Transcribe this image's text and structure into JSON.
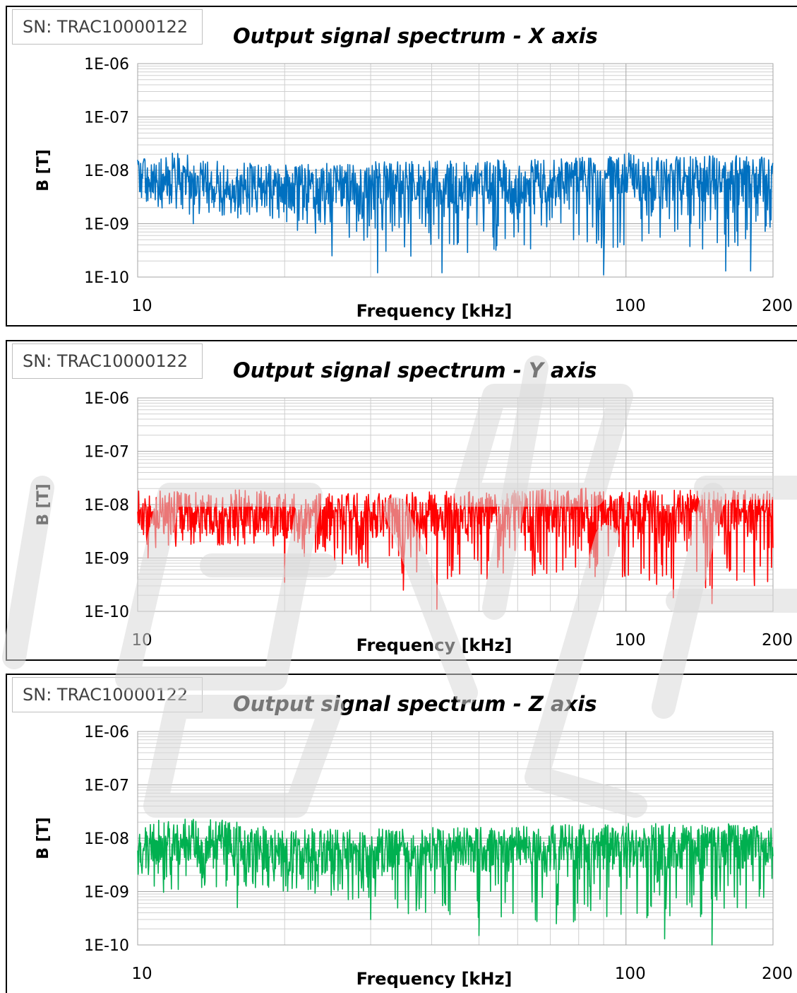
{
  "chart_data": [
    {
      "type": "line",
      "sn_label": "SN: TRAC10000122",
      "title": "Output signal spectrum - X axis",
      "xlabel": "Frequency [kHz]",
      "ylabel": "B [T]",
      "xscale": "log",
      "yscale": "log",
      "xlim": [
        10,
        200
      ],
      "ylim": [
        1e-10,
        1e-06
      ],
      "x_tick_labels": [
        "10",
        "100",
        "200"
      ],
      "y_tick_labels": [
        "1E-10",
        "1E-09",
        "1E-08",
        "1E-07",
        "1E-06"
      ],
      "grid": true,
      "series": [
        {
          "color": "#0070c0",
          "trace": {
            "x": [
              10,
              11,
              12,
              14,
              17,
              20,
              25,
              30,
              35,
              40,
              45,
              50,
              55,
              60,
              70,
              80,
              90,
              100,
              110,
              130,
              150,
              170,
              200
            ],
            "y_upper": [
              1.7e-08,
              1.6e-08,
              2.6e-08,
              1.6e-08,
              1.4e-08,
              1.3e-08,
              1.4e-08,
              1.5e-08,
              1.5e-08,
              1.5e-08,
              1.5e-08,
              1.5e-08,
              1.6e-08,
              1.6e-08,
              1.7e-08,
              1.8e-08,
              1.8e-08,
              2.3e-08,
              1.9e-08,
              1.9e-08,
              1.9e-08,
              1.9e-08,
              1.8e-08
            ],
            "y_lower": [
              3e-09,
              2e-09,
              1.5e-09,
              1.5e-09,
              1.2e-09,
              8e-10,
              6e-10,
              4e-10,
              2e-10,
              4e-10,
              3e-10,
              2e-10,
              3e-10,
              3e-10,
              4e-10,
              3e-10,
              2.5e-10,
              3e-10,
              5e-10,
              4e-10,
              2e-10,
              3e-10,
              5e-10
            ]
          },
          "dips": [
            [
              13,
              1e-09
            ],
            [
              20,
              2.5e-09
            ],
            [
              25,
              2.5e-10
            ],
            [
              31,
              1.2e-10
            ],
            [
              42,
              1.2e-10
            ],
            [
              90,
              1.1e-10
            ],
            [
              160,
              1.3e-10
            ],
            [
              180,
              1.3e-10
            ]
          ]
        }
      ]
    },
    {
      "type": "line",
      "sn_label": "SN: TRAC10000122",
      "title": "Output signal spectrum - Y axis",
      "xlabel": "Frequency [kHz]",
      "ylabel": "B [T]",
      "xscale": "log",
      "yscale": "log",
      "xlim": [
        10,
        200
      ],
      "ylim": [
        1e-10,
        1e-06
      ],
      "x_tick_labels": [
        "10",
        "100",
        "200"
      ],
      "y_tick_labels": [
        "1E-10",
        "1E-09",
        "1E-08",
        "1E-07",
        "1E-06"
      ],
      "grid": true,
      "series": [
        {
          "color": "#ff0000",
          "trace": {
            "x": [
              10,
              11,
              12,
              14,
              17,
              20,
              25,
              30,
              35,
              40,
              45,
              50,
              55,
              60,
              70,
              80,
              90,
              100,
              110,
              130,
              150,
              170,
              200
            ],
            "y_upper": [
              2e-08,
              1.8e-08,
              1.8e-08,
              1.7e-08,
              2e-08,
              1.6e-08,
              1.6e-08,
              1.7e-08,
              1.7e-08,
              1.8e-08,
              1.8e-08,
              1.8e-08,
              1.8e-08,
              1.9e-08,
              2e-08,
              2.2e-08,
              2e-08,
              2e-08,
              1.9e-08,
              1.9e-08,
              1.9e-08,
              1.9e-08,
              1.8e-08
            ],
            "y_lower": [
              2e-09,
              1.5e-09,
              1.5e-09,
              1.8e-09,
              1.5e-09,
              1.2e-09,
              8e-10,
              6e-10,
              5e-10,
              4e-10,
              3e-10,
              3e-10,
              4e-10,
              4e-10,
              5e-10,
              5e-10,
              4e-10,
              4e-10,
              3e-10,
              3e-10,
              2.5e-10,
              3e-10,
              3e-10
            ]
          },
          "dips": [
            [
              10.5,
              1e-09
            ],
            [
              20,
              3.5e-10
            ],
            [
              35,
              2.5e-10
            ],
            [
              41,
              1.1e-10
            ],
            [
              125,
              1.8e-10
            ],
            [
              150,
              1.4e-10
            ]
          ]
        }
      ]
    },
    {
      "type": "line",
      "sn_label": "SN: TRAC10000122",
      "title": "Output signal spectrum - Z axis",
      "xlabel": "Frequency [kHz]",
      "ylabel": "B [T]",
      "xscale": "log",
      "yscale": "log",
      "xlim": [
        10,
        200
      ],
      "ylim": [
        1e-10,
        1e-06
      ],
      "x_tick_labels": [
        "10",
        "100",
        "200"
      ],
      "y_tick_labels": [
        "1E-10",
        "1E-09",
        "1E-08",
        "1E-07",
        "1E-06"
      ],
      "grid": true,
      "series": [
        {
          "color": "#00b050",
          "trace": {
            "x": [
              10,
              11,
              12,
              14,
              17,
              20,
              25,
              30,
              35,
              40,
              45,
              50,
              55,
              60,
              70,
              80,
              90,
              100,
              110,
              130,
              150,
              170,
              200
            ],
            "y_upper": [
              1.4e-08,
              2.3e-08,
              2.6e-08,
              2.5e-08,
              1.8e-08,
              1.6e-08,
              1.5e-08,
              1.5e-08,
              1.5e-08,
              1.6e-08,
              1.6e-08,
              1.6e-08,
              1.7e-08,
              1.7e-08,
              1.8e-08,
              1.8e-08,
              1.8e-08,
              1.9e-08,
              1.9e-08,
              1.9e-08,
              1.9e-08,
              1.9e-08,
              1.8e-08
            ],
            "y_lower": [
              4e-09,
              9e-10,
              9e-10,
              1.2e-09,
              1e-09,
              9e-10,
              7e-10,
              5e-10,
              4e-10,
              3e-10,
              4e-10,
              3e-10,
              3e-10,
              3e-10,
              2.5e-10,
              2.5e-10,
              3e-10,
              3e-10,
              3e-10,
              3e-10,
              2.5e-10,
              3e-10,
              5e-10
            ]
          },
          "dips": [
            [
              16,
              5e-10
            ],
            [
              30,
              3e-10
            ],
            [
              50,
              1.5e-10
            ],
            [
              72,
              2.5e-10
            ],
            [
              120,
              1.3e-10
            ],
            [
              150,
              1e-10
            ]
          ]
        }
      ]
    }
  ]
}
